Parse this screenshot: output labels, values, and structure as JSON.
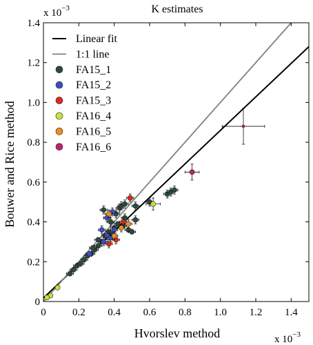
{
  "chart_data": {
    "type": "scatter",
    "title": "K estimates",
    "xlabel": "Hvorslev method",
    "ylabel": "Bouwer and Rice method",
    "x_exponent_label": "x 10",
    "x_exponent_power": "−3",
    "y_exponent_label": "x 10",
    "y_exponent_power": "−3",
    "xlim": [
      0,
      1.5
    ],
    "ylim": [
      0,
      1.4
    ],
    "x_ticks": [
      0,
      0.2,
      0.4,
      0.6,
      0.8,
      1.0,
      1.2,
      1.4
    ],
    "x_tick_labels": [
      "0",
      "0.2",
      "0.4",
      "0.6",
      "0.8",
      "1.0",
      "1.2",
      "1.4"
    ],
    "y_ticks": [
      0,
      0.2,
      0.4,
      0.6,
      0.8,
      1.0,
      1.2,
      1.4
    ],
    "y_tick_labels": [
      "0",
      "0.2",
      "0.4",
      "0.6",
      "0.8",
      "1.0",
      "1.2",
      "1.4"
    ],
    "grid": false,
    "legend_position": "top-left",
    "lines": [
      {
        "name": "Linear fit",
        "color": "#000000",
        "x": [
          0,
          1.5
        ],
        "y": [
          0.018,
          1.28
        ]
      },
      {
        "name": "1:1 line",
        "color": "#808080",
        "x": [
          0,
          1.4
        ],
        "y": [
          0,
          1.4
        ]
      }
    ],
    "series": [
      {
        "name": "FA15_1",
        "color": "#2c4a3e",
        "points": [
          {
            "x": 0.15,
            "y": 0.14,
            "xerr": 0.02,
            "yerr": 0.01
          },
          {
            "x": 0.17,
            "y": 0.16,
            "xerr": 0.02,
            "yerr": 0.01
          },
          {
            "x": 0.19,
            "y": 0.18,
            "xerr": 0.02,
            "yerr": 0.01
          },
          {
            "x": 0.21,
            "y": 0.19,
            "xerr": 0.02,
            "yerr": 0.01
          },
          {
            "x": 0.23,
            "y": 0.21,
            "xerr": 0.02,
            "yerr": 0.01
          },
          {
            "x": 0.25,
            "y": 0.23,
            "xerr": 0.02,
            "yerr": 0.01
          },
          {
            "x": 0.27,
            "y": 0.24,
            "xerr": 0.02,
            "yerr": 0.01
          },
          {
            "x": 0.29,
            "y": 0.26,
            "xerr": 0.02,
            "yerr": 0.01
          },
          {
            "x": 0.31,
            "y": 0.28,
            "xerr": 0.02,
            "yerr": 0.01
          },
          {
            "x": 0.33,
            "y": 0.3,
            "xerr": 0.02,
            "yerr": 0.01
          },
          {
            "x": 0.35,
            "y": 0.33,
            "xerr": 0.02,
            "yerr": 0.01
          },
          {
            "x": 0.37,
            "y": 0.35,
            "xerr": 0.02,
            "yerr": 0.01
          },
          {
            "x": 0.4,
            "y": 0.37,
            "xerr": 0.02,
            "yerr": 0.01
          },
          {
            "x": 0.42,
            "y": 0.39,
            "xerr": 0.02,
            "yerr": 0.01
          },
          {
            "x": 0.45,
            "y": 0.38,
            "xerr": 0.02,
            "yerr": 0.01
          },
          {
            "x": 0.48,
            "y": 0.36,
            "xerr": 0.02,
            "yerr": 0.01
          },
          {
            "x": 0.5,
            "y": 0.35,
            "xerr": 0.02,
            "yerr": 0.01
          },
          {
            "x": 0.34,
            "y": 0.46,
            "xerr": 0.02,
            "yerr": 0.02
          },
          {
            "x": 0.36,
            "y": 0.42,
            "xerr": 0.02,
            "yerr": 0.02
          },
          {
            "x": 0.38,
            "y": 0.4,
            "xerr": 0.02,
            "yerr": 0.02
          },
          {
            "x": 0.41,
            "y": 0.44,
            "xerr": 0.02,
            "yerr": 0.02
          },
          {
            "x": 0.43,
            "y": 0.47,
            "xerr": 0.02,
            "yerr": 0.02
          },
          {
            "x": 0.44,
            "y": 0.48,
            "xerr": 0.02,
            "yerr": 0.02
          },
          {
            "x": 0.46,
            "y": 0.49,
            "xerr": 0.02,
            "yerr": 0.02
          },
          {
            "x": 0.46,
            "y": 0.42,
            "xerr": 0.02,
            "yerr": 0.02
          },
          {
            "x": 0.39,
            "y": 0.34,
            "xerr": 0.02,
            "yerr": 0.02
          },
          {
            "x": 0.52,
            "y": 0.41,
            "xerr": 0.02,
            "yerr": 0.02
          },
          {
            "x": 0.52,
            "y": 0.48,
            "xerr": 0.02,
            "yerr": 0.02
          },
          {
            "x": 0.7,
            "y": 0.54,
            "xerr": 0.02,
            "yerr": 0.02
          },
          {
            "x": 0.72,
            "y": 0.55,
            "xerr": 0.02,
            "yerr": 0.02
          },
          {
            "x": 0.74,
            "y": 0.56,
            "xerr": 0.02,
            "yerr": 0.02
          },
          {
            "x": 0.6,
            "y": 0.5,
            "xerr": 0.02,
            "yerr": 0.02
          },
          {
            "x": 0.28,
            "y": 0.27,
            "xerr": 0.02,
            "yerr": 0.01
          },
          {
            "x": 0.31,
            "y": 0.31,
            "xerr": 0.02,
            "yerr": 0.01
          }
        ]
      },
      {
        "name": "FA15_2",
        "color": "#3b4fc4",
        "points": [
          {
            "x": 0.33,
            "y": 0.36,
            "xerr": 0.02,
            "yerr": 0.02
          },
          {
            "x": 0.36,
            "y": 0.42,
            "xerr": 0.02,
            "yerr": 0.02
          },
          {
            "x": 0.39,
            "y": 0.45,
            "xerr": 0.02,
            "yerr": 0.02
          },
          {
            "x": 0.34,
            "y": 0.3,
            "xerr": 0.02,
            "yerr": 0.02
          },
          {
            "x": 0.36,
            "y": 0.33,
            "xerr": 0.02,
            "yerr": 0.02
          },
          {
            "x": 0.38,
            "y": 0.32,
            "xerr": 0.02,
            "yerr": 0.02
          },
          {
            "x": 0.4,
            "y": 0.36,
            "xerr": 0.02,
            "yerr": 0.02
          },
          {
            "x": 0.26,
            "y": 0.24,
            "xerr": 0.02,
            "yerr": 0.01
          }
        ]
      },
      {
        "name": "FA15_3",
        "color": "#e0281e",
        "points": [
          {
            "x": 0.49,
            "y": 0.52,
            "xerr": 0.02,
            "yerr": 0.02
          },
          {
            "x": 0.45,
            "y": 0.4,
            "xerr": 0.02,
            "yerr": 0.02
          },
          {
            "x": 0.41,
            "y": 0.31,
            "xerr": 0.02,
            "yerr": 0.02
          },
          {
            "x": 0.37,
            "y": 0.29,
            "xerr": 0.02,
            "yerr": 0.02
          }
        ]
      },
      {
        "name": "FA16_4",
        "color": "#c6e23a",
        "points": [
          {
            "x": 0.62,
            "y": 0.49,
            "xerr": 0.04,
            "yerr": 0.03
          },
          {
            "x": 0.08,
            "y": 0.07,
            "xerr": 0.01,
            "yerr": 0.01
          },
          {
            "x": 0.04,
            "y": 0.03,
            "xerr": 0.01,
            "yerr": 0.01
          },
          {
            "x": 0.02,
            "y": 0.02,
            "xerr": 0.01,
            "yerr": 0.01
          }
        ]
      },
      {
        "name": "FA16_5",
        "color": "#f08c1c",
        "points": [
          {
            "x": 0.37,
            "y": 0.44,
            "xerr": 0.02,
            "yerr": 0.02
          },
          {
            "x": 0.4,
            "y": 0.33,
            "xerr": 0.02,
            "yerr": 0.02
          },
          {
            "x": 0.44,
            "y": 0.37,
            "xerr": 0.02,
            "yerr": 0.02
          },
          {
            "x": 0.48,
            "y": 0.39,
            "xerr": 0.02,
            "yerr": 0.02
          }
        ]
      },
      {
        "name": "FA16_6",
        "color": "#c41f73",
        "points": [
          {
            "x": 0.84,
            "y": 0.65,
            "xerr": 0.04,
            "yerr": 0.04
          },
          {
            "x": 1.13,
            "y": 0.88,
            "xerr": 0.12,
            "yerr": 0.09
          }
        ]
      }
    ]
  }
}
